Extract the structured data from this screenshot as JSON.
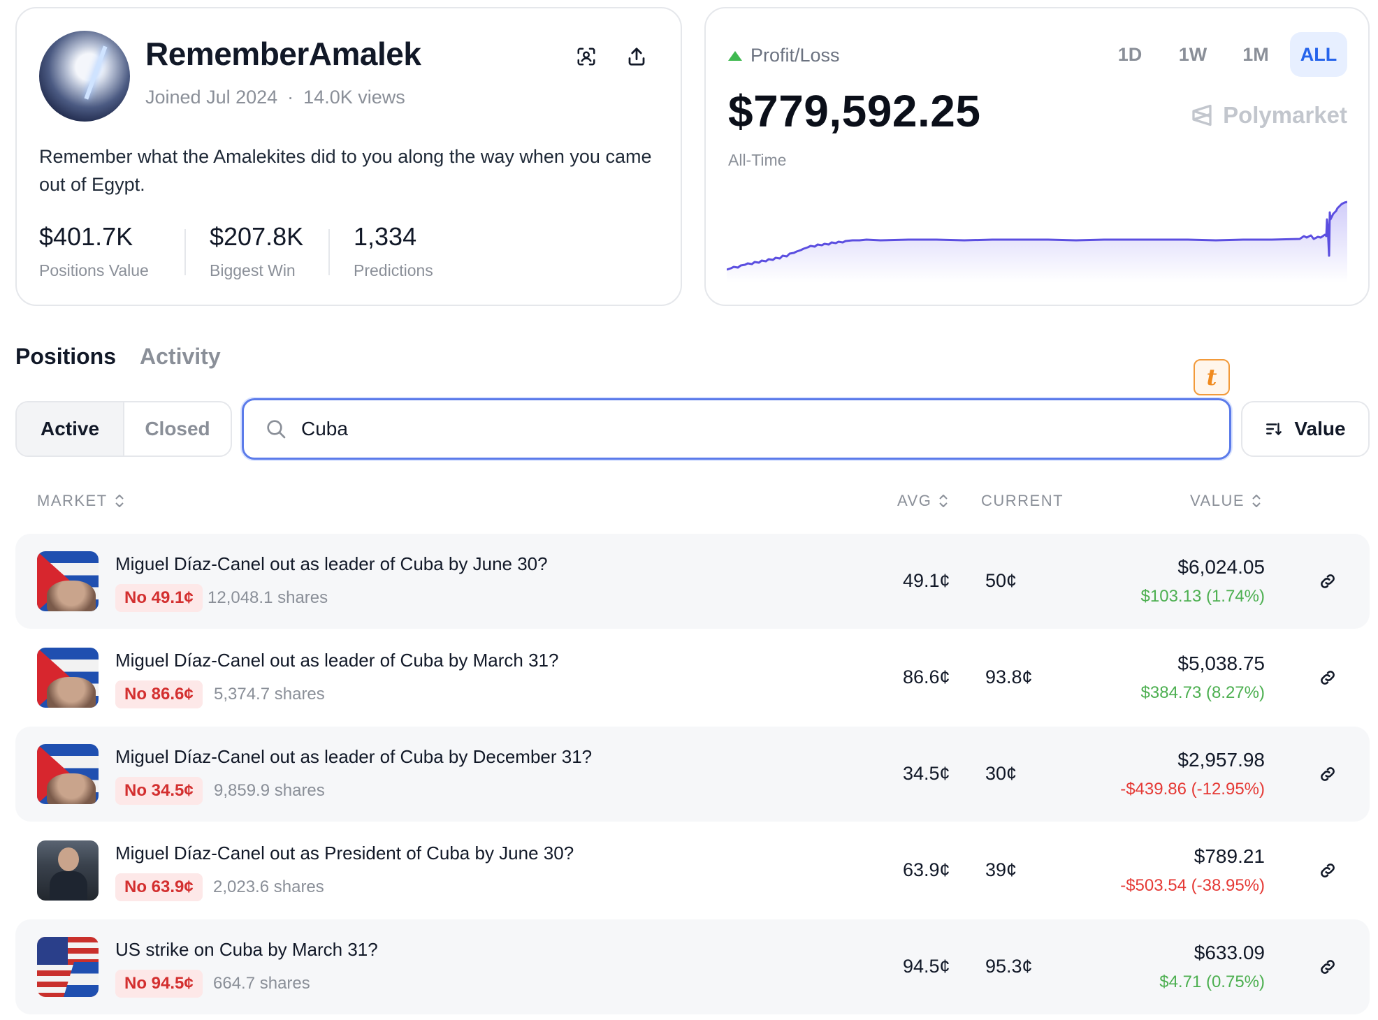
{
  "profile": {
    "username": "RememberAmalek",
    "joined": "Joined Jul 2024",
    "views": "14.0K views",
    "bio": "Remember what the Amalekites did to you along the way when you came out of Egypt.",
    "stats": [
      {
        "value": "$401.7K",
        "label": "Positions Value"
      },
      {
        "value": "$207.8K",
        "label": "Biggest Win"
      },
      {
        "value": "1,334",
        "label": "Predictions"
      }
    ],
    "icons": {
      "scan": "face-scan-icon",
      "share": "share-icon"
    }
  },
  "pnl": {
    "label": "Profit/Loss",
    "value": "$779,592.25",
    "period": "All-Time",
    "brand": "Polymarket",
    "ranges": [
      "1D",
      "1W",
      "1M",
      "ALL"
    ],
    "active_range": "ALL",
    "line_color": "#5b4ee0",
    "positive_color": "#3fb950"
  },
  "tabs": {
    "positions": "Positions",
    "activity": "Activity"
  },
  "filters": {
    "active": "Active",
    "closed": "Closed"
  },
  "search": {
    "value": "Cuba"
  },
  "sort": {
    "label": "Value"
  },
  "table": {
    "headers": {
      "market": "MARKET",
      "avg": "AVG",
      "current": "CURRENT",
      "value": "VALUE"
    },
    "rows": [
      {
        "title": "Miguel Díaz-Canel out as leader of Cuba by June 30?",
        "outcome": "No 49.1¢",
        "shares": "12,048.1 shares",
        "avg": "49.1¢",
        "current": "50¢",
        "value": "$6,024.05",
        "pnl": "$103.13 (1.74%)",
        "pnl_positive": true,
        "thumb": "cuba-flag"
      },
      {
        "title": "Miguel Díaz-Canel out as leader of Cuba by March 31?",
        "outcome": "No 86.6¢",
        "shares": "5,374.7 shares",
        "avg": "86.6¢",
        "current": "93.8¢",
        "value": "$5,038.75",
        "pnl": "$384.73 (8.27%)",
        "pnl_positive": true,
        "thumb": "cuba-flag"
      },
      {
        "title": "Miguel Díaz-Canel out as leader of Cuba by December 31?",
        "outcome": "No 34.5¢",
        "shares": "9,859.9 shares",
        "avg": "34.5¢",
        "current": "30¢",
        "value": "$2,957.98",
        "pnl": "-$439.86 (-12.95%)",
        "pnl_positive": false,
        "thumb": "cuba-flag"
      },
      {
        "title": "Miguel Díaz-Canel out as President of Cuba by June 30?",
        "outcome": "No 63.9¢",
        "shares": "2,023.6 shares",
        "avg": "63.9¢",
        "current": "39¢",
        "value": "$789.21",
        "pnl": "-$503.54 (-38.95%)",
        "pnl_positive": false,
        "thumb": "photo"
      },
      {
        "title": "US strike on Cuba by March 31?",
        "outcome": "No 94.5¢",
        "shares": "664.7 shares",
        "avg": "94.5¢",
        "current": "95.3¢",
        "value": "$633.09",
        "pnl": "$4.71 (0.75%)",
        "pnl_positive": true,
        "thumb": "us-cuba-flag"
      }
    ]
  }
}
